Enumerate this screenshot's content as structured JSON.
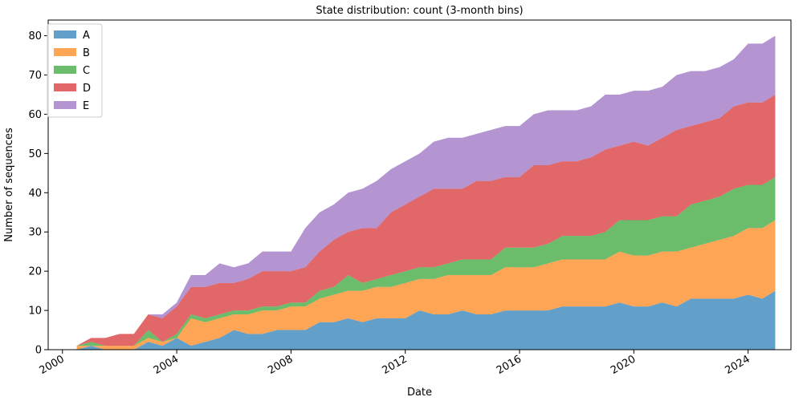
{
  "chart_data": {
    "type": "area",
    "stacked": true,
    "title": "State distribution: count (3-month bins)",
    "xlabel": "Date",
    "ylabel": "Number of sequences",
    "xlim": [
      1999.5,
      2025.5
    ],
    "ylim": [
      0,
      84
    ],
    "x_ticks": [
      2000,
      2004,
      2008,
      2012,
      2016,
      2020,
      2024
    ],
    "y_ticks": [
      0,
      10,
      20,
      30,
      40,
      50,
      60,
      70,
      80
    ],
    "grid": false,
    "legend_position": "upper-left",
    "x": [
      2000.5,
      2001.0,
      2001.5,
      2002.0,
      2002.5,
      2003.0,
      2003.5,
      2004.0,
      2004.5,
      2005.0,
      2005.5,
      2006.0,
      2006.5,
      2007.0,
      2007.5,
      2008.0,
      2008.5,
      2009.0,
      2009.5,
      2010.0,
      2010.5,
      2011.0,
      2011.5,
      2012.0,
      2012.5,
      2013.0,
      2013.5,
      2014.0,
      2014.5,
      2015.0,
      2015.5,
      2016.0,
      2016.5,
      2017.0,
      2017.5,
      2018.0,
      2018.5,
      2019.0,
      2019.5,
      2020.0,
      2020.5,
      2021.0,
      2021.5,
      2022.0,
      2022.5,
      2023.0,
      2023.5,
      2024.0,
      2024.5,
      2024.95
    ],
    "series": [
      {
        "name": "A",
        "color": "#1f77b4",
        "values": [
          0,
          1,
          0,
          0,
          0,
          2,
          1,
          3,
          1,
          2,
          3,
          5,
          4,
          4,
          5,
          5,
          5,
          7,
          7,
          8,
          7,
          8,
          8,
          8,
          10,
          9,
          9,
          10,
          9,
          9,
          10,
          10,
          10,
          10,
          11,
          11,
          11,
          11,
          12,
          11,
          11,
          12,
          11,
          13,
          13,
          13,
          13,
          14,
          13,
          15
        ]
      },
      {
        "name": "B",
        "color": "#ff7f0e",
        "values": [
          1,
          0,
          1,
          1,
          1,
          1,
          1,
          0,
          7,
          5,
          5,
          4,
          5,
          6,
          5,
          6,
          6,
          6,
          7,
          7,
          8,
          8,
          8,
          9,
          8,
          9,
          10,
          9,
          10,
          10,
          11,
          11,
          11,
          12,
          12,
          12,
          12,
          12,
          13,
          13,
          13,
          13,
          14,
          13,
          14,
          15,
          16,
          17,
          18,
          18
        ]
      },
      {
        "name": "C",
        "color": "#2ca02c",
        "values": [
          0,
          1,
          0,
          0,
          0,
          2,
          0,
          1,
          1,
          1,
          1,
          1,
          1,
          1,
          1,
          1,
          1,
          2,
          2,
          4,
          2,
          2,
          3,
          3,
          3,
          3,
          3,
          4,
          4,
          4,
          5,
          5,
          5,
          5,
          6,
          6,
          6,
          7,
          8,
          9,
          9,
          9,
          9,
          11,
          11,
          11,
          12,
          11,
          11,
          11
        ]
      },
      {
        "name": "D",
        "color": "#d62728",
        "values": [
          0,
          1,
          2,
          3,
          3,
          4,
          6,
          7,
          7,
          8,
          8,
          7,
          8,
          9,
          9,
          8,
          9,
          10,
          12,
          11,
          14,
          13,
          16,
          17,
          18,
          20,
          19,
          18,
          20,
          20,
          18,
          18,
          21,
          20,
          19,
          19,
          20,
          21,
          19,
          20,
          19,
          20,
          22,
          20,
          20,
          20,
          21,
          21,
          21,
          21
        ]
      },
      {
        "name": "E",
        "color": "#9467bd",
        "values": [
          0,
          0,
          0,
          0,
          0,
          0,
          1,
          1,
          3,
          3,
          5,
          4,
          4,
          5,
          5,
          5,
          10,
          10,
          9,
          10,
          10,
          12,
          11,
          11,
          11,
          12,
          13,
          13,
          12,
          13,
          13,
          13,
          13,
          14,
          13,
          13,
          13,
          14,
          13,
          13,
          14,
          13,
          14,
          14,
          13,
          13,
          12,
          15,
          15,
          15
        ]
      }
    ]
  }
}
